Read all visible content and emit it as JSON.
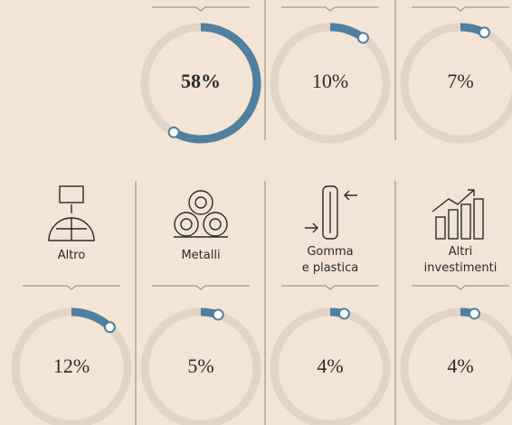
{
  "chart_data": {
    "type": "gauge",
    "categories": [
      null,
      null,
      null,
      "Altro",
      "Metalli",
      "Gomma\ne plastica",
      "Altri\ninvestimenti"
    ],
    "values": [
      58,
      10,
      7,
      12,
      5,
      4,
      4
    ],
    "value_labels": [
      "58%",
      "10%",
      "7%",
      "12%",
      "5%",
      "4%",
      "4%"
    ],
    "ylim": [
      0,
      100
    ],
    "color": "#4f7fa1",
    "track_color": "#e2d4c6"
  }
}
